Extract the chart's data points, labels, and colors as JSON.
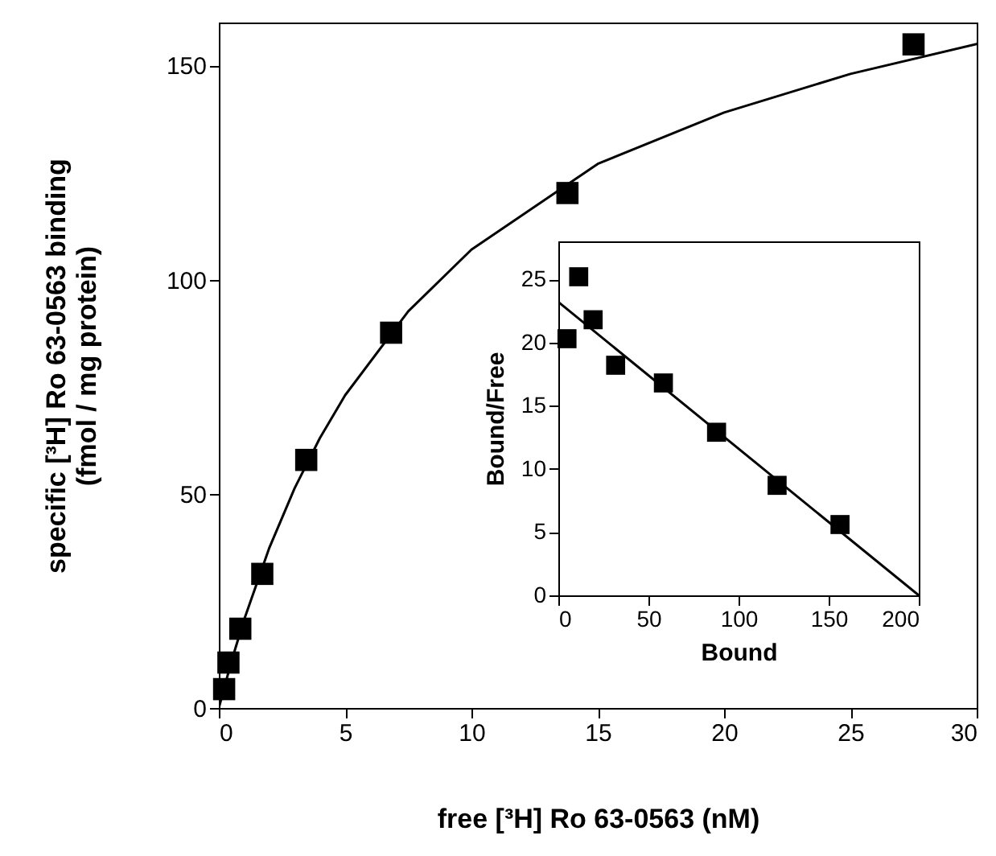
{
  "chart_data": [
    {
      "type": "scatter",
      "xlabel": "free [³H] Ro 63-0563 (nM)",
      "ylabel": "specific [³H] Ro 63-0563 binding\n(fmol / mg protein)",
      "xlim": [
        0,
        30
      ],
      "ylim": [
        0,
        160
      ],
      "xticks": [
        0,
        5,
        10,
        15,
        20,
        25,
        30
      ],
      "yticks": [
        0,
        50,
        100,
        150
      ],
      "grid": false,
      "series": [
        {
          "type": "line",
          "marker": "none",
          "color": "#000000",
          "x": [
            0,
            0.5,
            1,
            2,
            3,
            4,
            5,
            7.5,
            10,
            15,
            20,
            25,
            30
          ],
          "values": [
            0,
            10.9,
            20.6,
            37.4,
            51.3,
            63,
            73,
            92.6,
            107,
            127,
            139,
            148,
            155
          ]
        },
        {
          "marker": "square",
          "color": "#000000",
          "x": [
            0.21,
            0.38,
            0.85,
            1.72,
            3.46,
            6.82,
            13.8,
            27.5
          ],
          "values": [
            4.4,
            10.6,
            18.5,
            31.3,
            57.9,
            87.6,
            120.2,
            154.9
          ]
        }
      ]
    },
    {
      "type": "scatter",
      "xlabel": "Bound",
      "ylabel": "Bound/Free",
      "xlim": [
        0,
        200
      ],
      "ylim": [
        0,
        28
      ],
      "xticks": [
        0,
        50,
        100,
        150,
        200
      ],
      "yticks": [
        0,
        5,
        10,
        15,
        20,
        25
      ],
      "grid": false,
      "series": [
        {
          "type": "line",
          "marker": "none",
          "color": "#000000",
          "x": [
            0,
            200
          ],
          "values": [
            23.2,
            0
          ]
        },
        {
          "marker": "square",
          "color": "#000000",
          "x": [
            4.8,
            11.3,
            19.3,
            31.8,
            58.3,
            87.8,
            121.4,
            156.3
          ],
          "values": [
            20.3,
            25.2,
            21.8,
            18.2,
            16.8,
            12.9,
            8.7,
            5.6
          ]
        }
      ]
    }
  ]
}
